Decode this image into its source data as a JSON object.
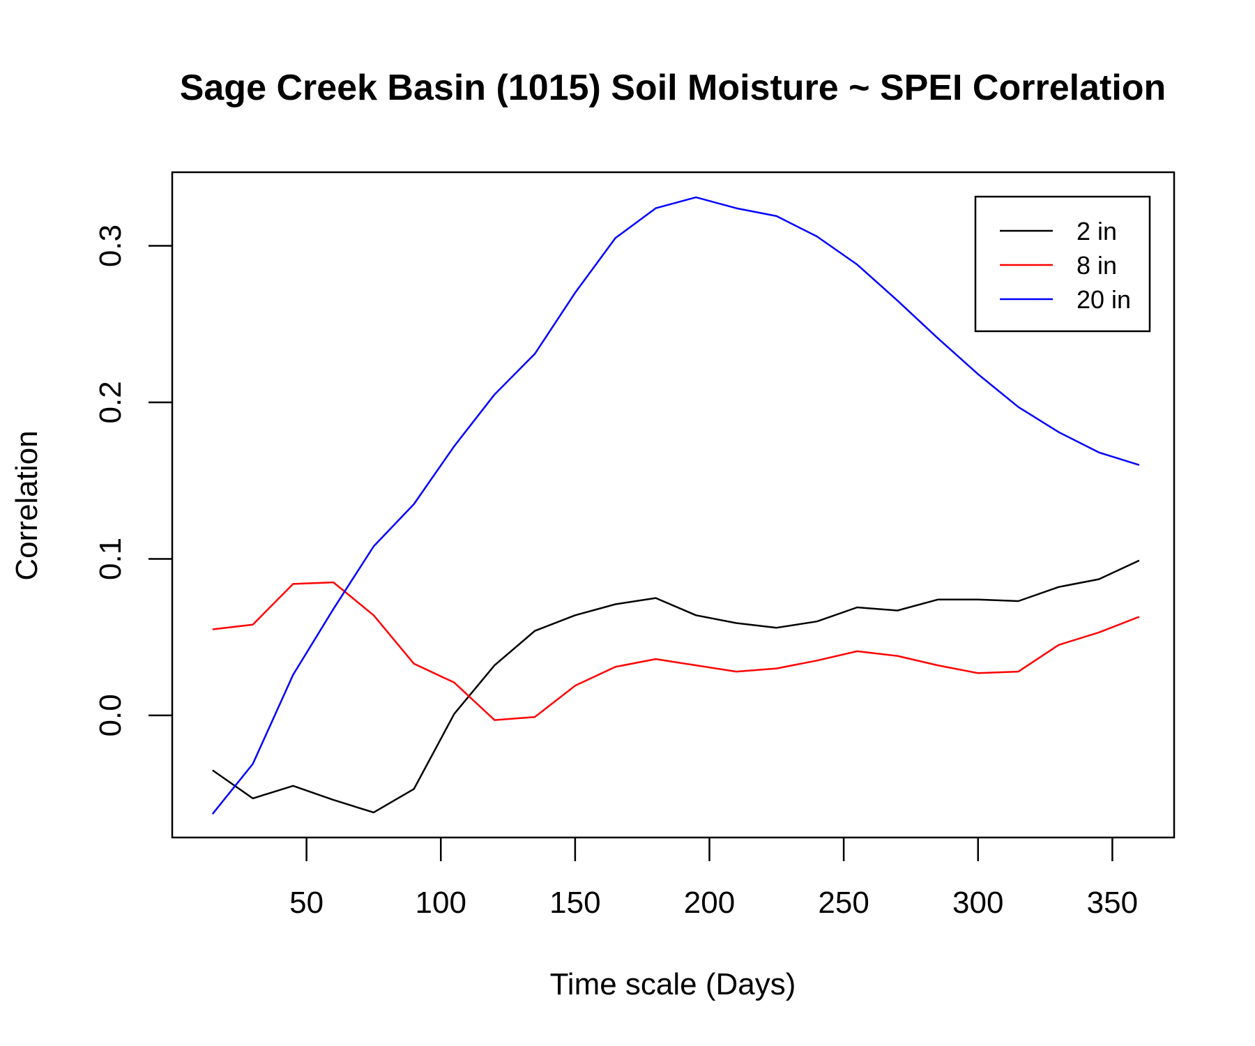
{
  "chart_data": {
    "type": "line",
    "title": "Sage Creek Basin (1015) Soil Moisture ~ SPEI Correlation",
    "xlabel": "Time scale (Days)",
    "ylabel": "Correlation",
    "xlim": [
      0,
      373
    ],
    "ylim": [
      -0.078,
      0.347
    ],
    "x_ticks": [
      50,
      100,
      150,
      200,
      250,
      300,
      350
    ],
    "x_tick_labels": [
      "50",
      "100",
      "150",
      "200",
      "250",
      "300",
      "350"
    ],
    "y_ticks": [
      0.0,
      0.1,
      0.2,
      0.3
    ],
    "y_tick_labels": [
      "0.0",
      "0.1",
      "0.2",
      "0.3"
    ],
    "grid": false,
    "legend_position": "top-right",
    "x": [
      15,
      30,
      45,
      60,
      75,
      90,
      105,
      120,
      135,
      150,
      165,
      180,
      195,
      210,
      225,
      240,
      255,
      270,
      285,
      300,
      315,
      330,
      345,
      360
    ],
    "series": [
      {
        "name": "2 in",
        "color": "#000000",
        "values": [
          -0.035,
          -0.053,
          -0.045,
          -0.054,
          -0.062,
          -0.047,
          0.001,
          0.032,
          0.054,
          0.064,
          0.071,
          0.075,
          0.064,
          0.059,
          0.056,
          0.06,
          0.069,
          0.067,
          0.074,
          0.074,
          0.073,
          0.082,
          0.087,
          0.099
        ]
      },
      {
        "name": "8 in",
        "color": "#ff0000",
        "values": [
          0.055,
          0.058,
          0.084,
          0.085,
          0.064,
          0.033,
          0.021,
          -0.003,
          -0.001,
          0.019,
          0.031,
          0.036,
          0.032,
          0.028,
          0.03,
          0.035,
          0.041,
          0.038,
          0.032,
          0.027,
          0.028,
          0.045,
          0.053,
          0.063
        ]
      },
      {
        "name": "20 in",
        "color": "#0000ff",
        "values": [
          -0.063,
          -0.031,
          0.026,
          0.068,
          0.108,
          0.135,
          0.172,
          0.205,
          0.231,
          0.27,
          0.305,
          0.324,
          0.331,
          0.324,
          0.319,
          0.306,
          0.288,
          0.265,
          0.241,
          0.218,
          0.197,
          0.181,
          0.168,
          0.16
        ]
      }
    ]
  }
}
